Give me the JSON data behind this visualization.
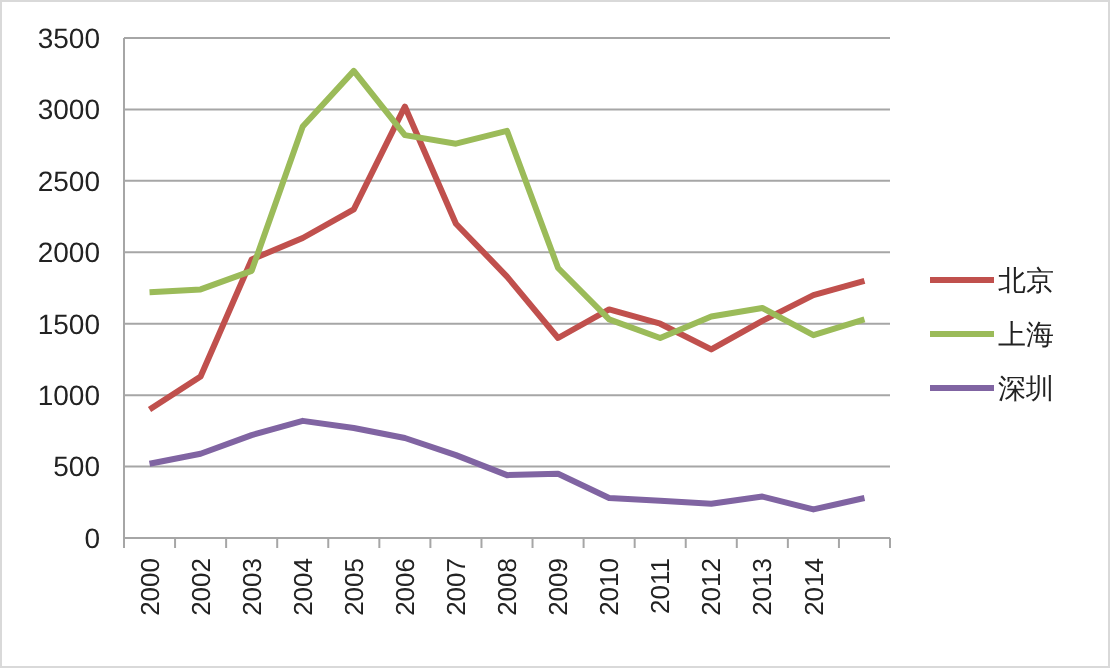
{
  "chart_data": {
    "type": "line",
    "categories": [
      "2000",
      "2002",
      "2003",
      "2004",
      "2005",
      "2006",
      "2007",
      "2008",
      "2009",
      "2010",
      "2011",
      "2012",
      "2013",
      "2014",
      null
    ],
    "series": [
      {
        "name": "北京",
        "color": "#c0504d",
        "values": [
          900,
          1130,
          1950,
          2100,
          2300,
          3020,
          2200,
          1830,
          1400,
          1600,
          1500,
          1320,
          1520,
          1700,
          1800
        ]
      },
      {
        "name": "上海",
        "color": "#9bbb59",
        "values": [
          1720,
          1740,
          1870,
          2880,
          3270,
          2820,
          2760,
          2850,
          1890,
          1530,
          1400,
          1550,
          1610,
          1420,
          1530
        ]
      },
      {
        "name": "深圳",
        "color": "#8064a2",
        "values": [
          520,
          590,
          720,
          820,
          770,
          700,
          580,
          440,
          450,
          280,
          260,
          240,
          290,
          200,
          280
        ]
      }
    ],
    "ylim": [
      0,
      3500
    ],
    "yticks": [
      0,
      500,
      1000,
      1500,
      2000,
      2500,
      3000,
      3500
    ],
    "grid": "y",
    "legend": "right",
    "marker": "none",
    "line_style": "solid"
  }
}
